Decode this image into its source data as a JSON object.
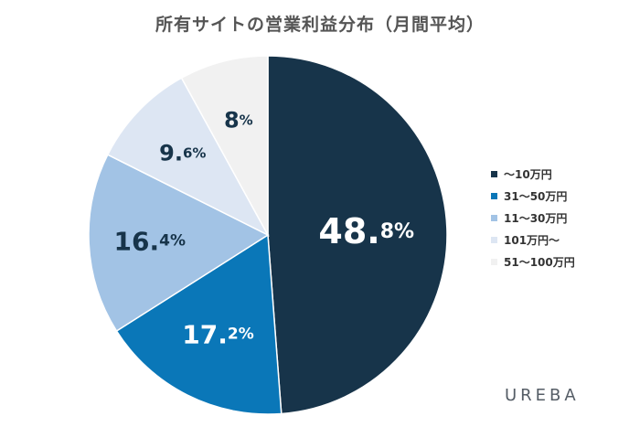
{
  "chart_data": {
    "type": "pie",
    "title": "所有サイトの営業利益分布（月間平均）",
    "unit": "%",
    "slices": [
      {
        "name": "〜10万円",
        "value": 48.8,
        "label_main": "48.",
        "label_sub": "8%",
        "color": "#17344a",
        "text_color": "#ffffff"
      },
      {
        "name": "31〜50万円",
        "value": 17.2,
        "label_main": "17.",
        "label_sub": "2%",
        "color": "#0a77b8",
        "text_color": "#ffffff"
      },
      {
        "name": "11〜30万円",
        "value": 16.4,
        "label_main": "16.",
        "label_sub": "4%",
        "color": "#a2c3e5",
        "text_color": "#17344a"
      },
      {
        "name": "101万円〜",
        "value": 9.6,
        "label_main": "9.",
        "label_sub": "6%",
        "color": "#dde6f3",
        "text_color": "#17344a"
      },
      {
        "name": "51〜100万円",
        "value": 8,
        "label_main": "8",
        "label_sub": "%",
        "color": "#f1f1f1",
        "text_color": "#17344a"
      }
    ],
    "legend_position": "right"
  },
  "brand": "UREBA"
}
